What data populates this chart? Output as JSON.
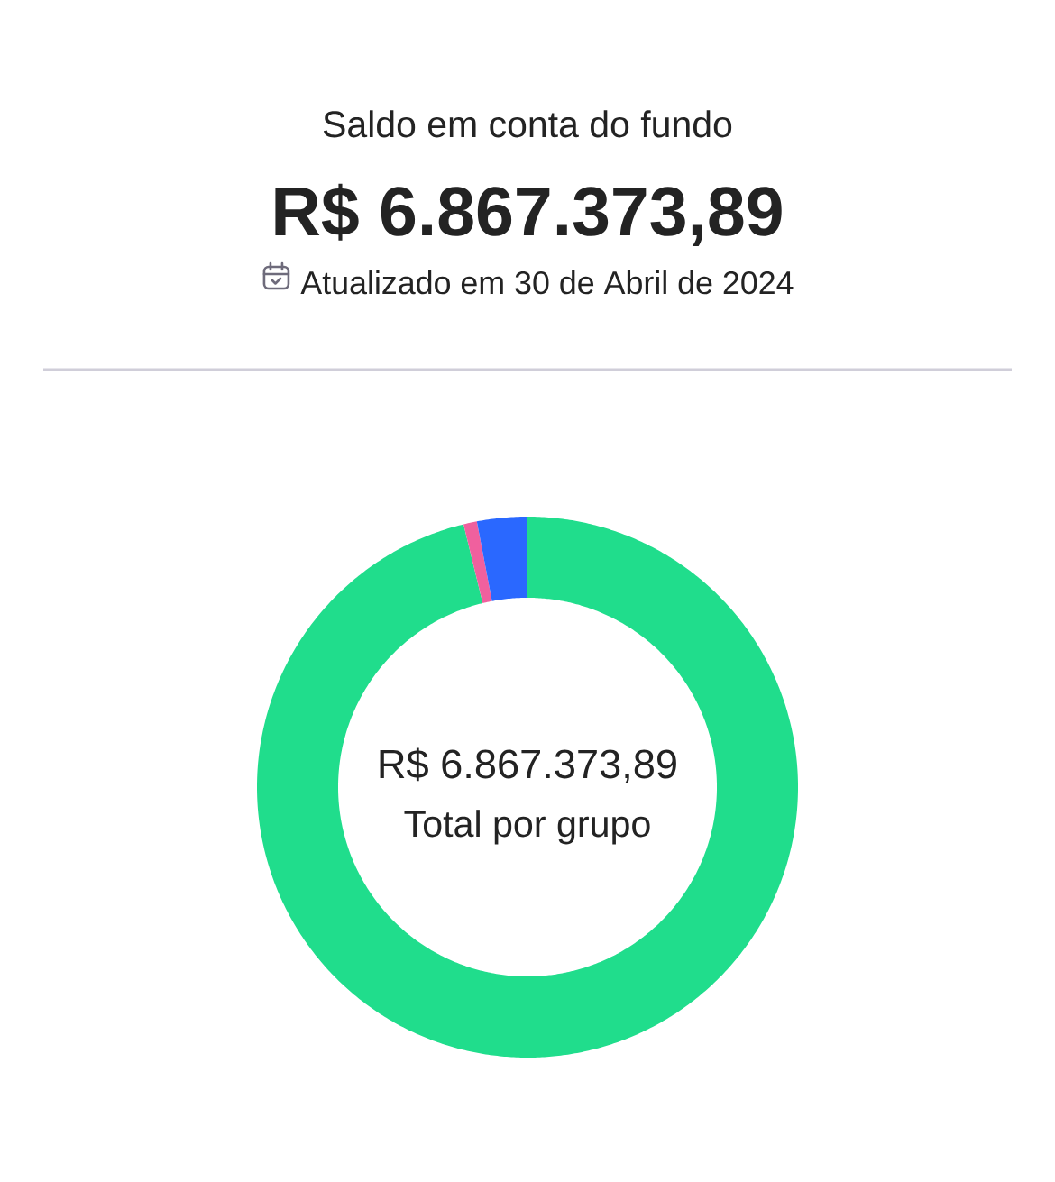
{
  "chart_data": {
    "type": "donut",
    "title": "Saldo em conta do fundo",
    "subtitle": "R$ 6.867.373,89",
    "annotations": [
      "Atualizado em 30 de Abril de 2024",
      "R$ 6.867.373,89",
      "Total por grupo"
    ],
    "categories": [
      null,
      null,
      null
    ],
    "values": [
      96.2,
      0.8,
      3.0
    ],
    "colors": [
      "#20dd8c",
      "#f0609e",
      "#2a68ff"
    ]
  }
}
